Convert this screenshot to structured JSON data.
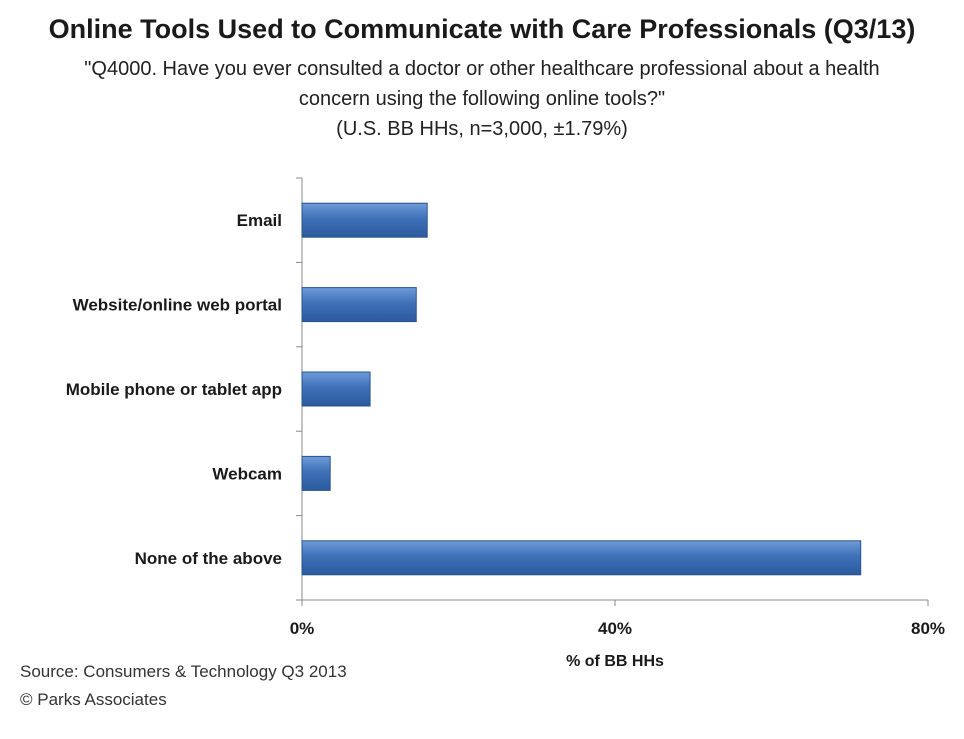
{
  "chart_data": {
    "type": "bar",
    "orientation": "horizontal",
    "title": "Online Tools Used to Communicate with Care Professionals (Q3/13)",
    "subtitle": "\"Q4000. Have you ever consulted a doctor or other healthcare professional about a health concern using the following online tools?\"",
    "sample_note": "(U.S. BB HHs, n=3,000, ±1.79%)",
    "categories": [
      "Email",
      "Website/online web portal",
      "Mobile phone or tablet app",
      "Webcam",
      "None of the above"
    ],
    "values": [
      16,
      14.6,
      8.7,
      3.6,
      71.4
    ],
    "unit": "%",
    "xlabel": "% of BB HHs",
    "ylabel": "",
    "xlim": [
      0,
      80
    ],
    "ticks": [
      0,
      40,
      80
    ],
    "tick_labels": [
      "0%",
      "40%",
      "80%"
    ],
    "bar_color": "#3f71b8",
    "grid": false,
    "legend": "none"
  },
  "source": {
    "line1": "Source: Consumers & Technology Q3 2013",
    "line2": "© Parks Associates"
  }
}
